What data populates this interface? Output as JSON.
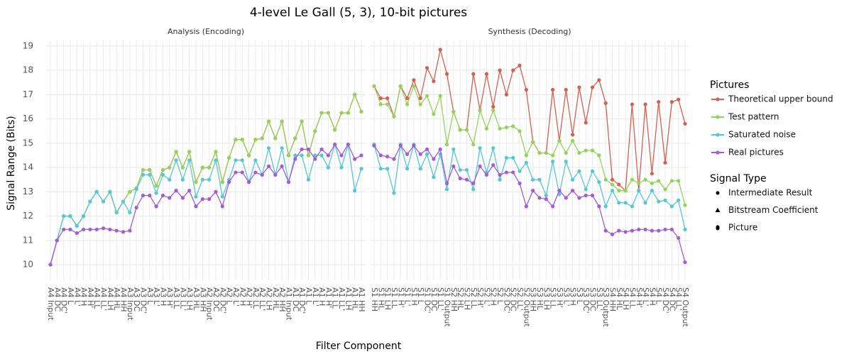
{
  "chart_data": {
    "type": "line",
    "title": "4-level Le Gall (5, 3), 10-bit pictures",
    "xlabel": "Filter Component",
    "ylabel": "Signal Range (Bits)",
    "ylim": [
      9.36,
      19.23
    ],
    "yticks": [
      10,
      11,
      12,
      13,
      14,
      15,
      16,
      17,
      18,
      19
    ],
    "grid": true,
    "legend_title": "Pictures",
    "signal_type_title": "Signal Type",
    "signal_types": [
      "Intermediate Result",
      "Bitstream Coefficient",
      "Picture"
    ],
    "series": [
      {
        "name": "Theoretical upper bound",
        "color": "#d65f50"
      },
      {
        "name": "Test pattern",
        "color": "#93d35b"
      },
      {
        "name": "Saturated noise",
        "color": "#55c8d6"
      },
      {
        "name": "Real pictures",
        "color": "#a35bd6"
      }
    ],
    "panels": [
      {
        "title": "Analysis (Encoding)",
        "categories": [
          "A4 Input",
          "A4 DC",
          "A4 DC'",
          "A4 L",
          "A4 L'",
          "A4 H",
          "A4 H'",
          "A4 LL",
          "A4 LL'",
          "A4 LH",
          "A4 HL",
          "A4 HH",
          "A3 Input",
          "A3 DC",
          "A3 DC'",
          "A3 L",
          "A3 L'",
          "A3 H",
          "A3 H'",
          "A3 LL",
          "A3 LL'",
          "A3 LH",
          "A3 HL",
          "A3 HH",
          "A2 Input",
          "A2 DC",
          "A2 DC'",
          "A2 L",
          "A2 L'",
          "A2 H",
          "A2 H'",
          "A2 LL",
          "A2 LL'",
          "A2 LH",
          "A2 HL",
          "A2 HH",
          "A1 Input",
          "A1 DC",
          "A1 DC'",
          "A1 L",
          "A1 L'",
          "A1 H",
          "A1 H'",
          "A1 LL",
          "A1 LL'",
          "A1 LH",
          "A1 HL",
          "A1 HH"
        ],
        "series": [
          {
            "values": [
              10,
              11,
              12,
              12,
              11.6,
              12,
              12.6,
              13,
              12.6,
              13,
              12.15,
              12.6,
              13,
              13.15,
              13.9,
              13.9,
              13.25,
              13.9,
              14,
              14.65,
              14,
              14.65,
              13.4,
              14,
              14,
              14.65,
              13.4,
              14.4,
              15.15,
              15.15,
              14.5,
              15.15,
              15.2,
              15.9,
              15.2,
              15.9,
              14.5,
              15.2,
              15.9,
              14.5,
              15.5,
              16.25,
              16.25,
              15.55,
              16.25,
              16.25,
              17,
              16.3
            ]
          },
          {
            "values": [
              10,
              11,
              12,
              12,
              11.6,
              12,
              12.6,
              13,
              12.6,
              13,
              12.15,
              12.6,
              13,
              13.15,
              13.9,
              13.9,
              13.25,
              13.9,
              14,
              14.65,
              14,
              14.65,
              13.4,
              14,
              14,
              14.65,
              13.4,
              14.4,
              15.15,
              15.15,
              14.5,
              15.15,
              15.2,
              15.9,
              15.2,
              15.9,
              14.5,
              15.2,
              15.9,
              14.5,
              15.5,
              16.25,
              16.25,
              15.55,
              16.25,
              16.25,
              17,
              16.3
            ]
          },
          {
            "values": [
              10,
              11,
              12,
              12,
              11.6,
              12,
              12.6,
              13,
              12.6,
              13,
              12.15,
              12.6,
              12.15,
              13.1,
              13.7,
              13.7,
              12.95,
              13.7,
              13.5,
              14.3,
              13.5,
              14.3,
              12.8,
              13.5,
              13.5,
              14.3,
              12.8,
              13.5,
              14.3,
              14.3,
              13.4,
              14.3,
              13.7,
              14.8,
              13.7,
              14.8,
              13.4,
              14.5,
              14.5,
              13.5,
              14.5,
              14.5,
              14,
              14.95,
              14,
              14.95,
              13.05,
              13.95
            ]
          },
          {
            "values": [
              10,
              11,
              11.45,
              11.45,
              11.3,
              11.45,
              11.45,
              11.45,
              11.5,
              11.45,
              11.4,
              11.35,
              11.4,
              12.35,
              12.85,
              12.85,
              12.4,
              12.85,
              12.75,
              13.05,
              12.75,
              13.05,
              12.4,
              12.7,
              12.7,
              13,
              12.4,
              13.4,
              13.8,
              13.8,
              13.4,
              13.8,
              13.7,
              14.05,
              13.7,
              14.05,
              13.4,
              14.35,
              14.75,
              14.75,
              14.35,
              14.75,
              14.5,
              14.95,
              14.5,
              14.95,
              14.35,
              14.5
            ]
          }
        ]
      },
      {
        "title": "Synthesis (Decoding)",
        "categories": [
          "S1 HH",
          "S1 HL",
          "S1 LH",
          "S1 LL",
          "S1 H'",
          "S1 L'",
          "S1 H",
          "S1 L",
          "S1 DC'",
          "S1 DC",
          "S1 LL'",
          "S1 Output",
          "S2 HH",
          "S2 HL",
          "S2 LH",
          "S2 LL",
          "S2 H'",
          "S2 L'",
          "S2 H",
          "S2 L",
          "S2 DC'",
          "S2 DC",
          "S2 LL'",
          "S2 Output",
          "S3 HH",
          "S3 HL",
          "S3 LH",
          "S3 LL",
          "S3 H'",
          "S3 L'",
          "S3 H",
          "S3 L",
          "S3 DC'",
          "S3 DC",
          "S3 LL'",
          "S3 Output",
          "S4 HH",
          "S4 HL",
          "S4 LH",
          "S4 LL",
          "S4 H'",
          "S4 L'",
          "S4 H",
          "S4 L",
          "S4 DC'",
          "S4 DC",
          "S4 LL'",
          "S4 Output"
        ],
        "series": [
          {
            "values": [
              17.35,
              16.85,
              16.85,
              16.1,
              17.35,
              16.85,
              17.6,
              16.85,
              18.1,
              17.55,
              18.85,
              17.85,
              16.3,
              15.55,
              15.55,
              17.85,
              16.35,
              17.85,
              16.5,
              18,
              17,
              18,
              18.2,
              17.2,
              15.05,
              14.6,
              14.6,
              17.2,
              15.1,
              17.2,
              15.35,
              17.3,
              15.85,
              17.3,
              17.6,
              16.65,
              13.5,
              13.3,
              13.05,
              16.6,
              13.05,
              16.6,
              13.75,
              16.7,
              14.2,
              16.7,
              16.8,
              15.8
            ]
          },
          {
            "values": [
              17.35,
              16.6,
              16.6,
              16.1,
              17.35,
              16.6,
              17.35,
              16.6,
              16.95,
              16.2,
              16.95,
              14.95,
              16.3,
              15.55,
              15.55,
              14.95,
              16.35,
              15.6,
              16.35,
              15.6,
              15.65,
              15.7,
              15.5,
              14.5,
              15.05,
              14.6,
              14.6,
              14.5,
              15.1,
              14.6,
              15.1,
              14.6,
              14.7,
              14.7,
              14.5,
              13.5,
              13.3,
              13.05,
              13.05,
              13.5,
              13.35,
              13.5,
              13.35,
              13.45,
              13.1,
              13.45,
              13.45,
              12.45
            ]
          },
          {
            "values": [
              14.95,
              13.95,
              13.95,
              12.95,
              14.95,
              13.95,
              14.95,
              13.95,
              14.55,
              13.6,
              14.55,
              13.1,
              14.75,
              13.9,
              13.9,
              13.1,
              14.8,
              13.8,
              14.8,
              13.5,
              14.4,
              14.4,
              13.85,
              14.2,
              13.5,
              13.5,
              12.85,
              14.25,
              12.9,
              14.25,
              13.5,
              13.85,
              13.1,
              13.85,
              13.4,
              12.4,
              13.05,
              12.55,
              12.55,
              12.4,
              13.05,
              12.55,
              13.05,
              12.6,
              12.65,
              12.4,
              12.65,
              11.45
            ]
          },
          {
            "values": [
              14.9,
              14.5,
              14.45,
              14.35,
              14.9,
              14.55,
              14.9,
              14.55,
              14.75,
              14.35,
              14.75,
              13.35,
              14.05,
              13.55,
              13.5,
              13.35,
              14.05,
              13.7,
              14.1,
              13.7,
              13.8,
              13.8,
              13.35,
              12.4,
              13.05,
              12.75,
              12.7,
              12.4,
              13.05,
              12.75,
              13.05,
              12.75,
              12.85,
              12.85,
              12.4,
              11.4,
              11.25,
              11.4,
              11.35,
              11.4,
              11.45,
              11.45,
              11.4,
              11.4,
              11.45,
              11.45,
              11.1,
              10.1
            ]
          }
        ]
      }
    ]
  }
}
